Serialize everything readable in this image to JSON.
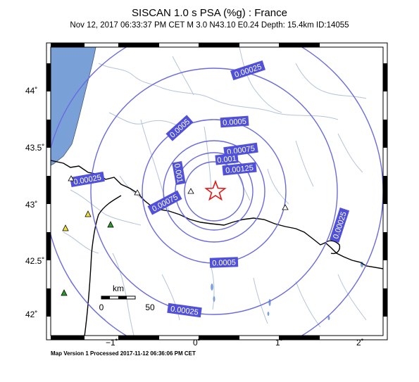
{
  "header": {
    "title": "SISCAN 1.0 s PSA (%g) : France",
    "subtitle": "Nov 12, 2017 06:33:37 PM CET   M 3.0   N43.10 E0.24   Depth: 15.4km   ID:14055"
  },
  "footer": "Map Version 1 Processed 2017-11-12 06:36:06 PM CET",
  "axes": {
    "lat_ticks": [
      "44˚",
      "43.5˚",
      "43˚",
      "42.5˚",
      "42˚"
    ],
    "lon_ticks": [
      "−1˚",
      "0˚",
      "1˚",
      "2˚"
    ]
  },
  "contour_labels": [
    "0.00025",
    "0.0005",
    "0.0005",
    "0.00075",
    "0.001",
    "0.001",
    "0.00125",
    "0.00025",
    "0.00075",
    "0.00025",
    "0.0005",
    "0.00025"
  ],
  "scalebar": {
    "unit": "km",
    "start": "0",
    "end": "50"
  },
  "colors": {
    "contour": "#6a6ae0",
    "label_bg": "#5050d8",
    "ocean": "#7aa0d8",
    "river": "#b4c4d8",
    "epicenter": "#e01818",
    "station_yellow": "#f0e040",
    "station_green": "#2a9a2a"
  }
}
